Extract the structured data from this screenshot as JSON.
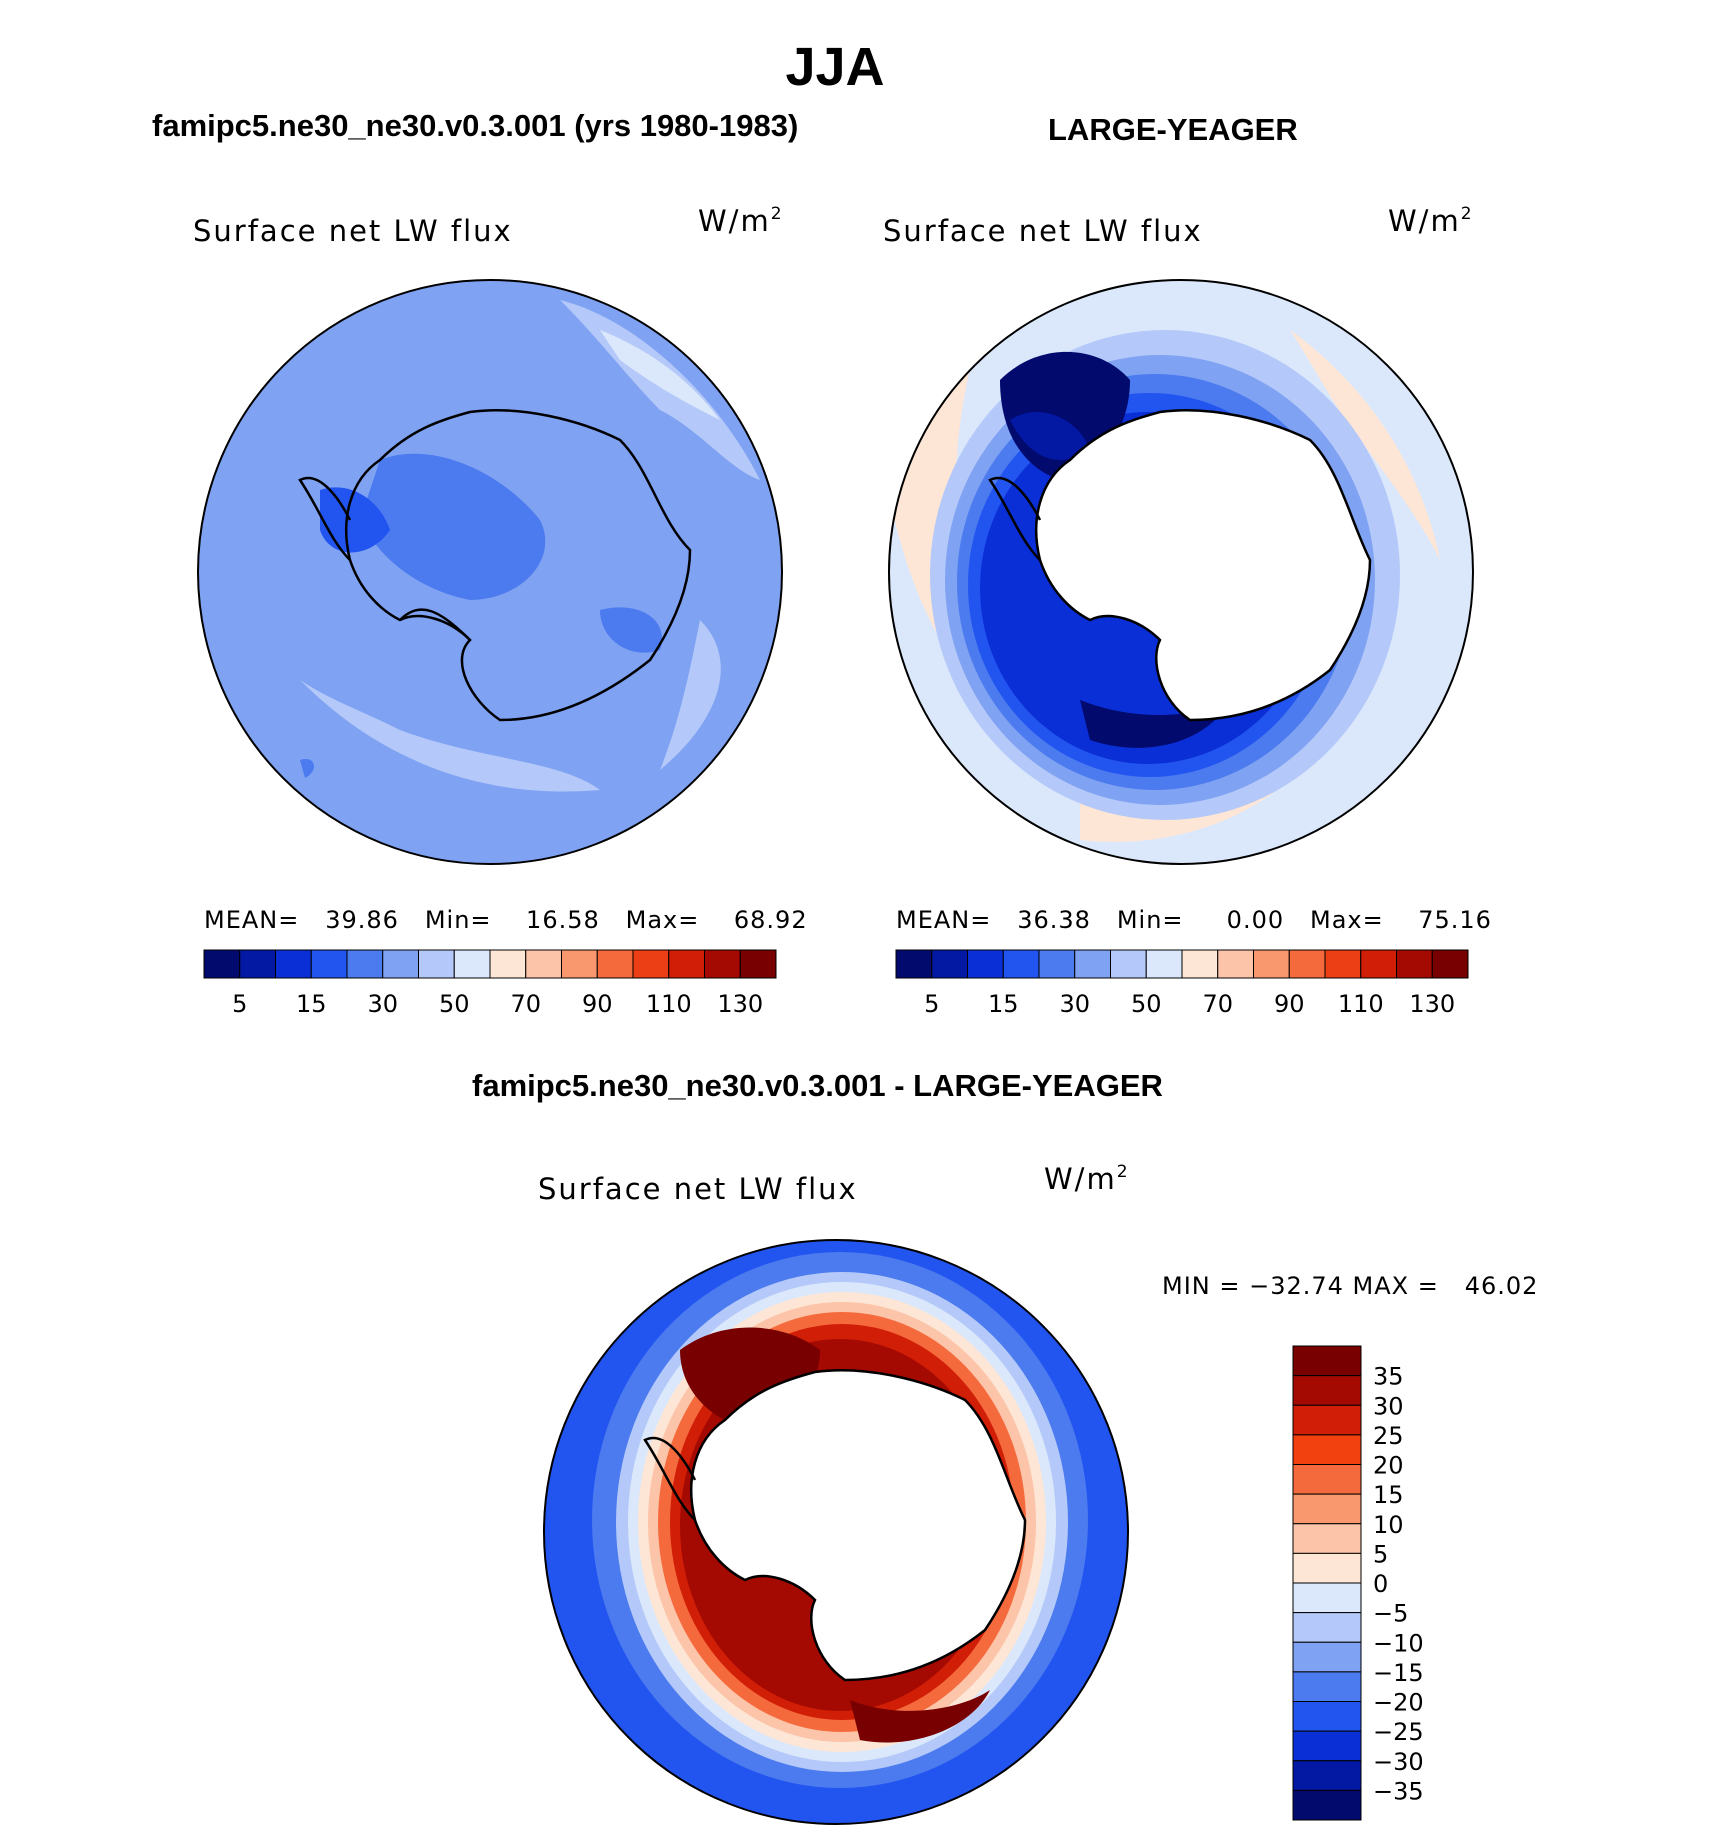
{
  "title": "JJA",
  "panels": {
    "model": {
      "title": "famipc5.ne30_ne30.v0.3.001 (yrs 1980-1983)",
      "variable": "Surface net LW flux",
      "units": "W/m",
      "units_sup": "2",
      "stats_text": "MEAN=   39.86   Min=    16.58   Max=    68.92",
      "stats": {
        "mean": 39.86,
        "min": 16.58,
        "max": 68.92
      }
    },
    "obs": {
      "title": "LARGE-YEAGER",
      "variable": "Surface net LW flux",
      "units": "W/m",
      "units_sup": "2",
      "stats_text": "MEAN=   36.38   Min=     0.00   Max=    75.16",
      "stats": {
        "mean": 36.38,
        "min": 0.0,
        "max": 75.16
      }
    },
    "diff": {
      "title": "famipc5.ne30_ne30.v0.3.001 - LARGE-YEAGER",
      "variable": "Surface net LW flux",
      "units": "W/m",
      "units_sup": "2",
      "stats_text": "MIN = −32.74 MAX =   46.02",
      "stats": {
        "min": -32.74,
        "max": 46.02
      }
    }
  },
  "chart_data": [
    {
      "type": "heatmap",
      "projection": "south-polar-stereographic",
      "title": "famipc5.ne30_ne30.v0.3.001 (yrs 1980-1983)",
      "variable": "Surface net LW flux",
      "units": "W/m2",
      "colorbar_orientation": "horizontal",
      "colorbar_tick_labels": [
        "5",
        "15",
        "30",
        "50",
        "70",
        "90",
        "110",
        "130"
      ],
      "colorbar_levels": [
        5,
        10,
        15,
        20,
        30,
        40,
        50,
        60,
        70,
        80,
        90,
        100,
        110,
        120,
        130
      ],
      "colors": [
        "#020a6e",
        "#0319a4",
        "#0b2fd6",
        "#2254f0",
        "#4b7bee",
        "#7fa2f2",
        "#b4c9f9",
        "#dbe8fb",
        "#fde6d6",
        "#fcc4a8",
        "#f9986e",
        "#f56a3d",
        "#ec3f16",
        "#d01e07",
        "#a50a02",
        "#780000"
      ],
      "mean": 39.86,
      "min": 16.58,
      "max": 68.92
    },
    {
      "type": "heatmap",
      "projection": "south-polar-stereographic",
      "title": "LARGE-YEAGER",
      "variable": "Surface net LW flux",
      "units": "W/m2",
      "colorbar_orientation": "horizontal",
      "colorbar_tick_labels": [
        "5",
        "15",
        "30",
        "50",
        "70",
        "90",
        "110",
        "130"
      ],
      "colorbar_levels": [
        5,
        10,
        15,
        20,
        30,
        40,
        50,
        60,
        70,
        80,
        90,
        100,
        110,
        120,
        130
      ],
      "colors": [
        "#020a6e",
        "#0319a4",
        "#0b2fd6",
        "#2254f0",
        "#4b7bee",
        "#7fa2f2",
        "#b4c9f9",
        "#dbe8fb",
        "#fde6d6",
        "#fcc4a8",
        "#f9986e",
        "#f56a3d",
        "#ec3f16",
        "#d01e07",
        "#a50a02",
        "#780000"
      ],
      "mean": 36.38,
      "min": 0.0,
      "max": 75.16
    },
    {
      "type": "heatmap",
      "projection": "south-polar-stereographic",
      "title": "famipc5.ne30_ne30.v0.3.001 - LARGE-YEAGER",
      "variable": "Surface net LW flux",
      "units": "W/m2",
      "colorbar_orientation": "vertical",
      "colorbar_tick_labels": [
        "35",
        "30",
        "25",
        "20",
        "15",
        "10",
        "5",
        "0",
        "−5",
        "−10",
        "−15",
        "−20",
        "−25",
        "−30",
        "−35"
      ],
      "colorbar_levels": [
        35,
        30,
        25,
        20,
        15,
        10,
        5,
        0,
        -5,
        -10,
        -15,
        -20,
        -25,
        -30,
        -35
      ],
      "colors": [
        "#780000",
        "#a50a02",
        "#d01e07",
        "#f2400f",
        "#f56a3d",
        "#f9986e",
        "#fcc4a8",
        "#fde6d6",
        "#dbe8fb",
        "#b4c9f9",
        "#7fa2f2",
        "#4b7bee",
        "#2254f0",
        "#0b2fd6",
        "#0319a4",
        "#020a6e"
      ],
      "min": -32.74,
      "max": 46.02
    }
  ]
}
